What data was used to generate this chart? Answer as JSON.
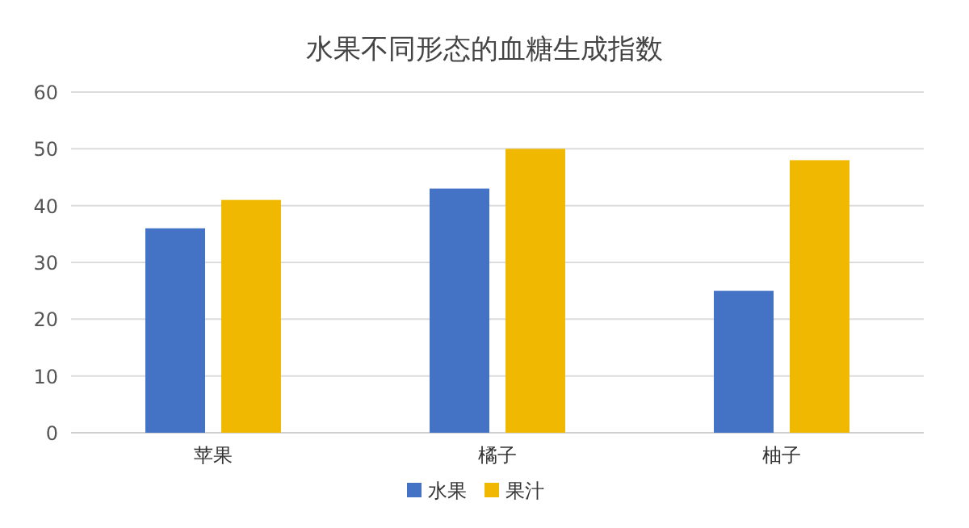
{
  "chart_data": {
    "type": "bar",
    "title": "水果不同形态的血糖生成指数",
    "categories": [
      "苹果",
      "橘子",
      "柚子"
    ],
    "series": [
      {
        "name": "水果",
        "color": "#4472c4",
        "values": [
          36,
          43,
          25
        ]
      },
      {
        "name": "果汁",
        "color": "#f0b800",
        "values": [
          41,
          50,
          48
        ]
      }
    ],
    "ylim": [
      0,
      60
    ],
    "yticks": [
      0,
      10,
      20,
      30,
      40,
      50,
      60
    ],
    "grid": "y",
    "legend": "bottom"
  }
}
